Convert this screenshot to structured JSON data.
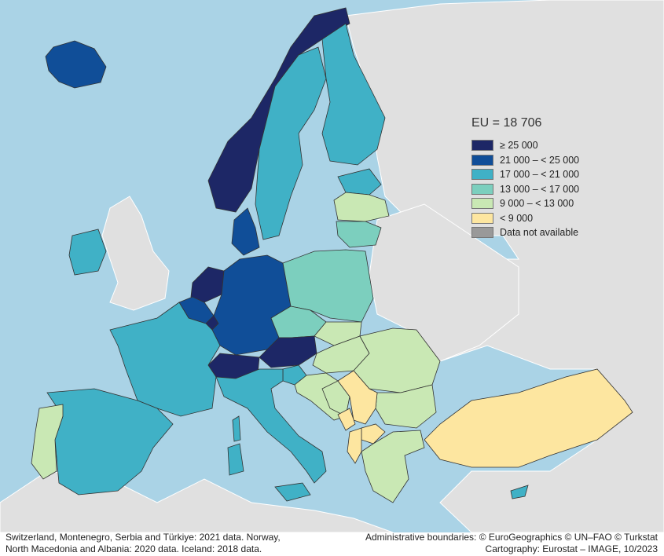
{
  "legend": {
    "title": "EU = 18 706",
    "items": [
      {
        "label": "≥ 25 000",
        "color": "#1d2766"
      },
      {
        "label": "21 000 – < 25 000",
        "color": "#104e98"
      },
      {
        "label": "17 000 – < 21 000",
        "color": "#40b1c6"
      },
      {
        "label": "13 000 – < 17 000",
        "color": "#7ccfbe"
      },
      {
        "label": "9 000 – < 13 000",
        "color": "#c9e8b4"
      },
      {
        "label": "< 9 000",
        "color": "#fde6a0"
      },
      {
        "label": "Data not available",
        "color": "#999999"
      }
    ]
  },
  "colors": {
    "sea": "#aad3e6",
    "non_covered_land": "#e0e0e0",
    "border": "#333333"
  },
  "footnote": {
    "line1": "Switzerland, Montenegro, Serbia and Türkiye: 2021 data. Norway,",
    "line2": "North Macedonia and Albania: 2020 data. Iceland: 2018 data."
  },
  "credits": {
    "line1": "Administrative boundaries: © EuroGeographics © UN–FAO © Turkstat",
    "line2": "Cartography: Eurostat – IMAGE, 10/2023"
  }
}
